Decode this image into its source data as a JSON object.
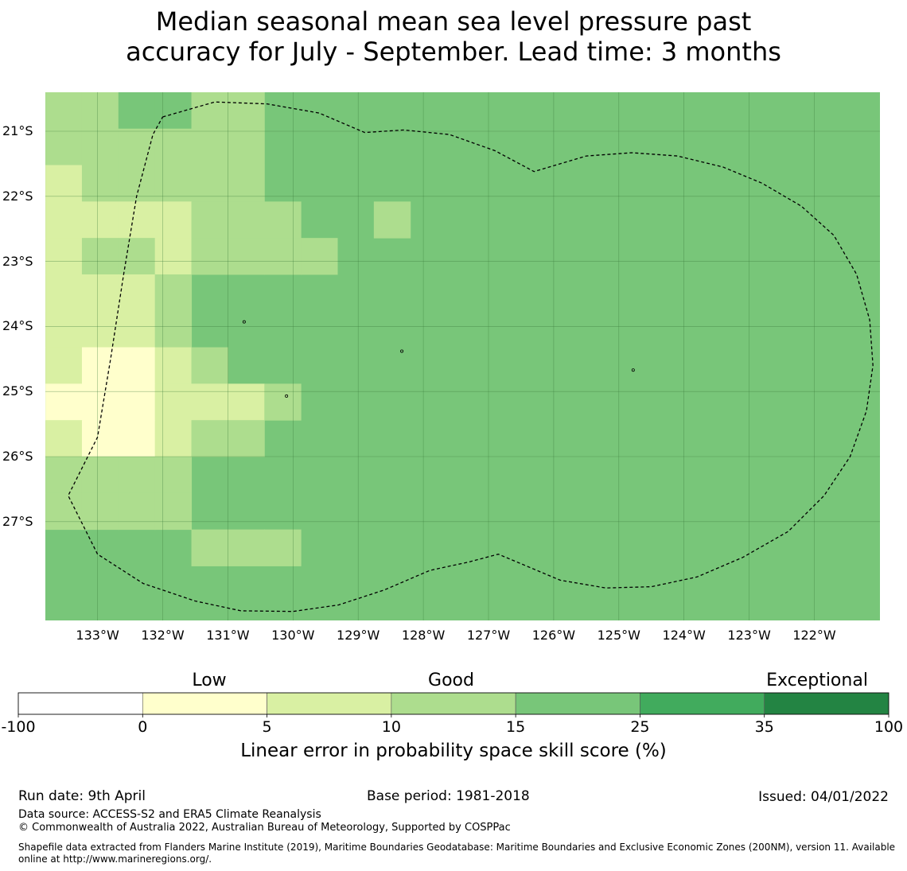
{
  "title_line1": "Median seasonal mean sea level pressure past",
  "title_line2": "accuracy for July - September. Lead time: 3 months",
  "map": {
    "lat_ticks": [
      {
        "value": -21,
        "label": "21°S"
      },
      {
        "value": -22,
        "label": "22°S"
      },
      {
        "value": -23,
        "label": "23°S"
      },
      {
        "value": -24,
        "label": "24°S"
      },
      {
        "value": -25,
        "label": "25°S"
      },
      {
        "value": -26,
        "label": "26°S"
      },
      {
        "value": -27,
        "label": "27°S"
      }
    ],
    "lon_ticks": [
      {
        "value": -133,
        "label": "133°W"
      },
      {
        "value": -132,
        "label": "132°W"
      },
      {
        "value": -131,
        "label": "131°W"
      },
      {
        "value": -130,
        "label": "130°W"
      },
      {
        "value": -129,
        "label": "129°W"
      },
      {
        "value": -128,
        "label": "128°W"
      },
      {
        "value": -127,
        "label": "127°W"
      },
      {
        "value": -126,
        "label": "126°W"
      },
      {
        "value": -125,
        "label": "125°W"
      },
      {
        "value": -124,
        "label": "124°W"
      },
      {
        "value": -123,
        "label": "123°W"
      },
      {
        "value": -122,
        "label": "122°W"
      }
    ],
    "extent": {
      "lon_min": -133.8,
      "lon_max": -121.0,
      "lat_max": -20.4,
      "lat_min": -28.5
    },
    "cell_size_deg": 0.56,
    "default_category": 4,
    "cells": [
      {
        "lon": -133.52,
        "lat": -20.68,
        "cat": 3
      },
      {
        "lon": -132.96,
        "lat": -20.68,
        "cat": 3
      },
      {
        "lon": -132.4,
        "lat": -20.68,
        "cat": 4
      },
      {
        "lon": -131.84,
        "lat": -20.68,
        "cat": 4
      },
      {
        "lon": -131.28,
        "lat": -20.68,
        "cat": 3
      },
      {
        "lon": -130.72,
        "lat": -20.68,
        "cat": 3
      },
      {
        "lon": -133.52,
        "lat": -21.24,
        "cat": 3
      },
      {
        "lon": -132.96,
        "lat": -21.24,
        "cat": 3
      },
      {
        "lon": -132.4,
        "lat": -21.24,
        "cat": 3
      },
      {
        "lon": -131.84,
        "lat": -21.24,
        "cat": 3
      },
      {
        "lon": -131.28,
        "lat": -21.24,
        "cat": 3
      },
      {
        "lon": -130.72,
        "lat": -21.24,
        "cat": 3
      },
      {
        "lon": -133.52,
        "lat": -21.8,
        "cat": 2
      },
      {
        "lon": -132.96,
        "lat": -21.8,
        "cat": 3
      },
      {
        "lon": -132.4,
        "lat": -21.8,
        "cat": 3
      },
      {
        "lon": -131.84,
        "lat": -21.8,
        "cat": 3
      },
      {
        "lon": -131.28,
        "lat": -21.8,
        "cat": 3
      },
      {
        "lon": -130.72,
        "lat": -21.8,
        "cat": 3
      },
      {
        "lon": -133.52,
        "lat": -22.36,
        "cat": 2
      },
      {
        "lon": -132.96,
        "lat": -22.36,
        "cat": 2
      },
      {
        "lon": -132.4,
        "lat": -22.36,
        "cat": 2
      },
      {
        "lon": -131.84,
        "lat": -22.36,
        "cat": 2
      },
      {
        "lon": -131.28,
        "lat": -22.36,
        "cat": 3
      },
      {
        "lon": -130.72,
        "lat": -22.36,
        "cat": 3
      },
      {
        "lon": -130.16,
        "lat": -22.36,
        "cat": 3
      },
      {
        "lon": -128.48,
        "lat": -22.36,
        "cat": 3
      },
      {
        "lon": -133.52,
        "lat": -22.92,
        "cat": 2
      },
      {
        "lon": -132.96,
        "lat": -22.92,
        "cat": 3
      },
      {
        "lon": -132.4,
        "lat": -22.92,
        "cat": 3
      },
      {
        "lon": -131.84,
        "lat": -22.92,
        "cat": 2
      },
      {
        "lon": -131.28,
        "lat": -22.92,
        "cat": 3
      },
      {
        "lon": -130.72,
        "lat": -22.92,
        "cat": 3
      },
      {
        "lon": -130.16,
        "lat": -22.92,
        "cat": 3
      },
      {
        "lon": -129.6,
        "lat": -22.92,
        "cat": 3
      },
      {
        "lon": -133.52,
        "lat": -23.48,
        "cat": 2
      },
      {
        "lon": -132.96,
        "lat": -23.48,
        "cat": 2
      },
      {
        "lon": -132.4,
        "lat": -23.48,
        "cat": 2
      },
      {
        "lon": -131.84,
        "lat": -23.48,
        "cat": 3
      },
      {
        "lon": -133.52,
        "lat": -24.04,
        "cat": 2
      },
      {
        "lon": -132.96,
        "lat": -24.04,
        "cat": 2
      },
      {
        "lon": -132.4,
        "lat": -24.04,
        "cat": 2
      },
      {
        "lon": -131.84,
        "lat": -24.04,
        "cat": 3
      },
      {
        "lon": -133.52,
        "lat": -24.6,
        "cat": 2
      },
      {
        "lon": -132.96,
        "lat": -24.6,
        "cat": 1
      },
      {
        "lon": -132.4,
        "lat": -24.6,
        "cat": 1
      },
      {
        "lon": -131.84,
        "lat": -24.6,
        "cat": 2
      },
      {
        "lon": -131.28,
        "lat": -24.6,
        "cat": 3
      },
      {
        "lon": -133.52,
        "lat": -25.16,
        "cat": 1
      },
      {
        "lon": -132.96,
        "lat": -25.16,
        "cat": 1
      },
      {
        "lon": -132.4,
        "lat": -25.16,
        "cat": 1
      },
      {
        "lon": -131.84,
        "lat": -25.16,
        "cat": 2
      },
      {
        "lon": -131.28,
        "lat": -25.16,
        "cat": 2
      },
      {
        "lon": -130.72,
        "lat": -25.16,
        "cat": 2
      },
      {
        "lon": -130.16,
        "lat": -25.16,
        "cat": 3
      },
      {
        "lon": -133.52,
        "lat": -25.72,
        "cat": 2
      },
      {
        "lon": -132.96,
        "lat": -25.72,
        "cat": 1
      },
      {
        "lon": -132.4,
        "lat": -25.72,
        "cat": 1
      },
      {
        "lon": -131.84,
        "lat": -25.72,
        "cat": 2
      },
      {
        "lon": -131.28,
        "lat": -25.72,
        "cat": 3
      },
      {
        "lon": -130.72,
        "lat": -25.72,
        "cat": 3
      },
      {
        "lon": -133.52,
        "lat": -26.28,
        "cat": 3
      },
      {
        "lon": -132.96,
        "lat": -26.28,
        "cat": 3
      },
      {
        "lon": -132.4,
        "lat": -26.28,
        "cat": 3
      },
      {
        "lon": -131.84,
        "lat": -26.28,
        "cat": 3
      },
      {
        "lon": -133.52,
        "lat": -26.84,
        "cat": 3
      },
      {
        "lon": -132.96,
        "lat": -26.84,
        "cat": 3
      },
      {
        "lon": -132.4,
        "lat": -26.84,
        "cat": 3
      },
      {
        "lon": -131.84,
        "lat": -26.84,
        "cat": 3
      },
      {
        "lon": -131.28,
        "lat": -27.4,
        "cat": 3
      },
      {
        "lon": -130.72,
        "lat": -27.4,
        "cat": 3
      },
      {
        "lon": -130.16,
        "lat": -27.4,
        "cat": 3
      }
    ],
    "eez_boundary": [
      [
        -132.0,
        -20.78
      ],
      [
        -131.2,
        -20.55
      ],
      [
        -130.4,
        -20.58
      ],
      [
        -129.6,
        -20.72
      ],
      [
        -128.9,
        -21.02
      ],
      [
        -128.3,
        -20.98
      ],
      [
        -127.6,
        -21.05
      ],
      [
        -126.9,
        -21.3
      ],
      [
        -126.3,
        -21.62
      ],
      [
        -125.5,
        -21.38
      ],
      [
        -124.8,
        -21.33
      ],
      [
        -124.1,
        -21.38
      ],
      [
        -123.4,
        -21.55
      ],
      [
        -122.8,
        -21.8
      ],
      [
        -122.2,
        -22.15
      ],
      [
        -121.7,
        -22.6
      ],
      [
        -121.35,
        -23.2
      ],
      [
        -121.15,
        -23.9
      ],
      [
        -121.1,
        -24.6
      ],
      [
        -121.2,
        -25.3
      ],
      [
        -121.45,
        -26.0
      ],
      [
        -121.85,
        -26.6
      ],
      [
        -122.4,
        -27.15
      ],
      [
        -123.1,
        -27.55
      ],
      [
        -123.8,
        -27.85
      ],
      [
        -124.5,
        -28.0
      ],
      [
        -125.2,
        -28.02
      ],
      [
        -125.9,
        -27.9
      ],
      [
        -126.85,
        -27.5
      ],
      [
        -127.3,
        -27.62
      ],
      [
        -127.9,
        -27.75
      ],
      [
        -128.6,
        -28.05
      ],
      [
        -129.3,
        -28.28
      ],
      [
        -130.0,
        -28.38
      ],
      [
        -130.8,
        -28.37
      ],
      [
        -131.5,
        -28.22
      ],
      [
        -132.3,
        -27.95
      ],
      [
        -133.0,
        -27.5
      ],
      [
        -133.45,
        -26.6
      ],
      [
        -133.0,
        -25.7
      ],
      [
        -132.8,
        -24.5
      ],
      [
        -132.6,
        -23.2
      ],
      [
        -132.4,
        -22.0
      ],
      [
        -132.15,
        -21.05
      ],
      [
        -132.0,
        -20.78
      ]
    ],
    "islands": [
      {
        "lon": -128.33,
        "lat": -24.38
      },
      {
        "lon": -130.75,
        "lat": -23.93
      },
      {
        "lon": -130.1,
        "lat": -25.07
      },
      {
        "lon": -124.78,
        "lat": -24.67
      }
    ]
  },
  "colorbar": {
    "category_labels": [
      "Low",
      "Good",
      "Exceptional"
    ],
    "ticks": [
      "-100",
      "0",
      "5",
      "10",
      "15",
      "25",
      "35",
      "100"
    ],
    "colors": [
      "#ffffff",
      "#ffffcc",
      "#d9f0a3",
      "#addd8e",
      "#78c679",
      "#41ab5d",
      "#238443"
    ],
    "title": "Linear error in probability space skill score (%)"
  },
  "footer": {
    "run_date": "Run date: 9th April",
    "base_period": "Base period: 1981-2018",
    "issued": "Issued: 04/01/2022",
    "data_source": "Data source: ACCESS-S2 and ERA5 Climate Reanalysis",
    "copyright": "© Commonwealth of Australia 2022, Australian Bureau of Meteorology, Supported by COSPPac",
    "shapefile": "Shapefile data extracted from Flanders Marine Institute (2019), Maritime Boundaries Geodatabase: Maritime Boundaries and Exclusive Economic Zones (200NM), version 11. Available online at http://www.marineregions.org/."
  }
}
